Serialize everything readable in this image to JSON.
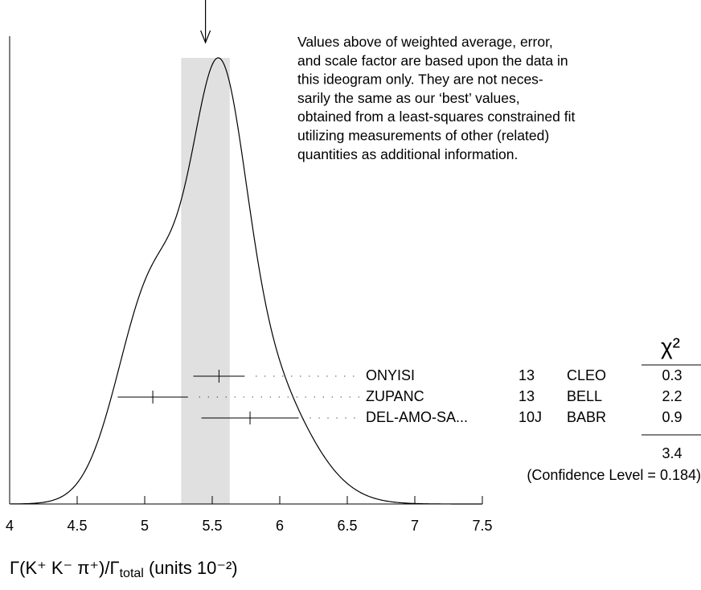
{
  "chart_data": {
    "type": "ideogram",
    "xlim": [
      4,
      7.5
    ],
    "xticks": [
      4,
      4.5,
      5,
      5.5,
      6,
      6.5,
      7,
      7.5
    ],
    "xlabel_main": "Γ(K⁺ K⁻ π⁺)/Γ",
    "xlabel_sub": "total",
    "xlabel_tail": " (units 10⁻²)",
    "average": 5.45,
    "average_error": 0.18,
    "band_color": "#e0e0e0",
    "note": [
      "Values above of weighted average, error,",
      "and scale factor are based upon the data in",
      "this ideogram only.  They are not neces-",
      "sarily the same as our ‘best’ values,",
      "obtained from a least-squares constrained fit",
      "utilizing measurements of other (related)",
      "quantities as additional information."
    ],
    "chi2_header": "χ²",
    "measurements": [
      {
        "author": "ONYISI",
        "document": "13",
        "experiment": "CLEO",
        "value": 5.55,
        "error": 0.19,
        "chi2": 0.3
      },
      {
        "author": "ZUPANC",
        "document": "13",
        "experiment": "BELL",
        "value": 5.06,
        "error": 0.26,
        "chi2": 2.2
      },
      {
        "author": "DEL-AMO-SA...",
        "document": "10J",
        "experiment": "BABR",
        "value": 5.78,
        "error": 0.36,
        "chi2": 0.9
      }
    ],
    "chi2_total": 3.4,
    "confidence_level_label": "(Confidence Level = 0.184)"
  }
}
